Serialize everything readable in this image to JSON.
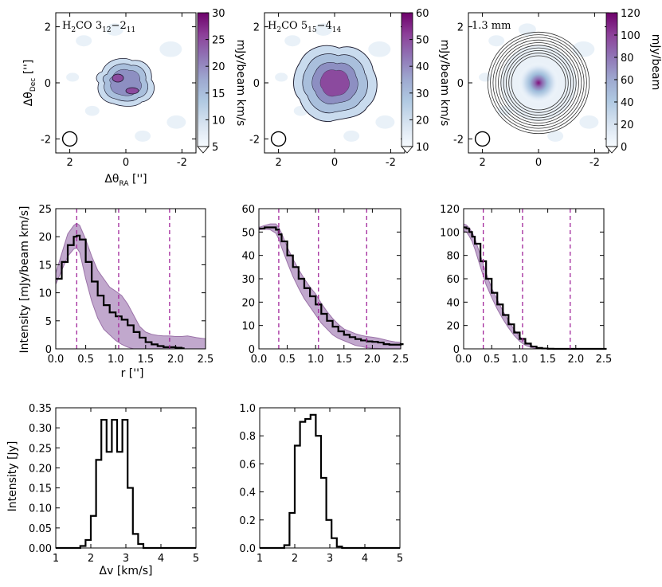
{
  "figure": {
    "background": "#ffffff"
  },
  "colors": {
    "profile_fill": "#b799c5",
    "profile_edge": "#8a5a9a",
    "profile_line": "#000000",
    "guide_line": "#a2279b",
    "contour": "#1a1a2e",
    "cmap": [
      "#f7fbff",
      "#c6dbef",
      "#9ebad8",
      "#8c96c6",
      "#8c6bb1",
      "#88419d",
      "#6e016b"
    ]
  },
  "chart_data": [
    {
      "id": "map1",
      "type": "heatmap",
      "title_main": "H",
      "title_sub1": "2",
      "title_mid": "CO 3",
      "title_sub2": "12",
      "title_dash": "−2",
      "title_sub3": "11",
      "xlabel_main": "Δθ",
      "xlabel_sub": "RA",
      "xlabel_unit": " ['']",
      "ylabel_main": "Δθ",
      "ylabel_sub": "Dec",
      "ylabel_unit": " ['']",
      "xlim": [
        2.5,
        -2.5
      ],
      "ylim": [
        -2.5,
        2.5
      ],
      "xticks": [
        2,
        0,
        -2
      ],
      "xtick_labels": [
        "2",
        "0",
        "-2"
      ],
      "yticks": [
        -2,
        0,
        2
      ],
      "ytick_labels": [
        "-2",
        "0",
        "2"
      ],
      "beam_center": [
        2.0,
        -2.0
      ],
      "colorbar": {
        "label": "mJy/beam km/s",
        "range": [
          5,
          30
        ],
        "ticks": [
          5,
          10,
          15,
          20,
          25,
          30
        ],
        "tick_labels": [
          "5",
          "10",
          "15",
          "20",
          "25",
          "30"
        ]
      },
      "source": {
        "peak": 27,
        "size": 1.0
      }
    },
    {
      "id": "map2",
      "type": "heatmap",
      "title_main": "H",
      "title_sub1": "2",
      "title_mid": "CO 5",
      "title_sub2": "15",
      "title_dash": "−4",
      "title_sub3": "14",
      "xlim": [
        2.5,
        -2.5
      ],
      "ylim": [
        -2.5,
        2.5
      ],
      "xticks": [
        2,
        0,
        -2
      ],
      "xtick_labels": [
        "2",
        "0",
        "-2"
      ],
      "yticks": [
        -2,
        0,
        2
      ],
      "ytick_labels": [
        "-2",
        "0",
        "2"
      ],
      "beam_center": [
        2.0,
        -2.0
      ],
      "colorbar": {
        "label": "mJy/beam km/s",
        "range": [
          10,
          60
        ],
        "ticks": [
          10,
          20,
          30,
          40,
          50,
          60
        ],
        "tick_labels": [
          "10",
          "20",
          "30",
          "40",
          "50",
          "60"
        ]
      },
      "source": {
        "peak": 58,
        "size": 1.2
      }
    },
    {
      "id": "map3",
      "type": "heatmap",
      "title_text": "1.3 mm",
      "xlim": [
        2.5,
        -2.5
      ],
      "ylim": [
        -2.5,
        2.5
      ],
      "xticks": [
        2,
        0,
        -2
      ],
      "xtick_labels": [
        "2",
        "0",
        "-2"
      ],
      "yticks": [
        -2,
        0,
        2
      ],
      "ytick_labels": [
        "-2",
        "0",
        "2"
      ],
      "beam_center": [
        2.0,
        -2.0
      ],
      "colorbar": {
        "label": "mJy/beam",
        "range": [
          0,
          120
        ],
        "ticks": [
          0,
          20,
          40,
          60,
          80,
          100,
          120
        ],
        "tick_labels": [
          "0",
          "20",
          "40",
          "60",
          "80",
          "100",
          "120"
        ]
      },
      "source": {
        "peak": 105,
        "size": 0.45
      }
    },
    {
      "id": "prof1",
      "type": "line",
      "xlabel": "r ['']",
      "ylabel": "Intensity [mJy/beam km/s]",
      "xlim": [
        0,
        2.5
      ],
      "ylim": [
        0,
        25
      ],
      "xticks": [
        0.0,
        0.5,
        1.0,
        1.5,
        2.0,
        2.5
      ],
      "xtick_labels": [
        "0.0",
        "0.5",
        "1.0",
        "1.5",
        "2.0",
        "2.5"
      ],
      "yticks": [
        0,
        5,
        10,
        15,
        20,
        25
      ],
      "ytick_labels": [
        "0",
        "5",
        "10",
        "15",
        "20",
        "25"
      ],
      "vlines": [
        0.35,
        1.05,
        1.9
      ],
      "x": [
        0.0,
        0.1,
        0.2,
        0.3,
        0.35,
        0.4,
        0.5,
        0.6,
        0.7,
        0.8,
        0.9,
        1.0,
        1.1,
        1.2,
        1.3,
        1.4,
        1.5,
        1.6,
        1.7,
        1.8,
        1.9,
        2.0,
        2.1
      ],
      "y": [
        12.5,
        15.5,
        18.5,
        20.0,
        20.2,
        19.5,
        15.5,
        12.0,
        9.5,
        7.8,
        6.5,
        5.8,
        5.2,
        4.2,
        3.0,
        2.0,
        1.2,
        0.8,
        0.5,
        0.3,
        0.3,
        0.2,
        0.1
      ],
      "y_low": [
        11.5,
        14.0,
        16.5,
        17.8,
        18.0,
        17.2,
        12.5,
        8.5,
        5.5,
        3.5,
        2.5,
        1.5,
        0.8,
        0.3,
        0.0,
        0.0,
        0.0,
        0.0,
        0.0,
        0.0,
        0.0,
        0.0,
        0.0
      ],
      "y_high": [
        13.5,
        17.0,
        20.5,
        22.0,
        22.4,
        22.0,
        19.5,
        16.5,
        14.0,
        12.5,
        11.0,
        10.3,
        9.5,
        8.0,
        6.0,
        4.0,
        3.0,
        2.6,
        2.4,
        2.3,
        2.3,
        2.2,
        2.2,
        2.3,
        2.0,
        1.8
      ],
      "x_high": [
        0.0,
        0.1,
        0.2,
        0.3,
        0.35,
        0.4,
        0.5,
        0.6,
        0.7,
        0.8,
        0.9,
        1.0,
        1.1,
        1.2,
        1.3,
        1.4,
        1.5,
        1.6,
        1.7,
        1.8,
        1.9,
        2.0,
        2.1,
        2.2,
        2.35,
        2.5
      ],
      "x_low_tail": [
        2.1,
        2.5
      ]
    },
    {
      "id": "prof2",
      "type": "line",
      "xlim": [
        0,
        2.5
      ],
      "ylim": [
        0,
        60
      ],
      "xticks": [
        0.0,
        0.5,
        1.0,
        1.5,
        2.0,
        2.5
      ],
      "xtick_labels": [
        "0.0",
        "0.5",
        "1.0",
        "1.5",
        "2.0",
        "2.5"
      ],
      "yticks": [
        0,
        10,
        20,
        30,
        40,
        50,
        60
      ],
      "ytick_labels": [
        "0",
        "10",
        "20",
        "30",
        "40",
        "50",
        "60"
      ],
      "vlines": [
        0.35,
        1.05,
        1.9
      ],
      "x": [
        0.0,
        0.1,
        0.2,
        0.3,
        0.35,
        0.4,
        0.5,
        0.6,
        0.7,
        0.8,
        0.9,
        1.0,
        1.1,
        1.2,
        1.3,
        1.4,
        1.5,
        1.6,
        1.7,
        1.8,
        1.9,
        2.0,
        2.1,
        2.2,
        2.3,
        2.4,
        2.5
      ],
      "y": [
        51.5,
        52.0,
        52.0,
        51.0,
        49.0,
        46.0,
        40.0,
        35.0,
        30.0,
        26.0,
        22.5,
        19.0,
        15.0,
        12.0,
        9.5,
        7.5,
        6.0,
        5.0,
        4.2,
        3.6,
        3.2,
        3.0,
        2.7,
        2.0,
        1.8,
        1.8,
        2.0
      ],
      "y_low": [
        51.0,
        51.2,
        51.0,
        49.5,
        47.0,
        43.5,
        37.0,
        31.0,
        26.0,
        21.5,
        18.0,
        14.5,
        11.0,
        8.5,
        6.0,
        4.5,
        3.5,
        2.5,
        1.5,
        1.0,
        0.5,
        0.3,
        0.2,
        0.0,
        0.0,
        0.0,
        0.0
      ],
      "y_high": [
        52.0,
        52.8,
        53.5,
        53.5,
        52.0,
        49.5,
        43.5,
        38.5,
        34.0,
        30.0,
        26.5,
        23.5,
        19.5,
        16.0,
        13.0,
        10.5,
        8.5,
        7.5,
        6.5,
        5.8,
        5.3,
        5.0,
        4.6,
        4.0,
        3.4,
        3.0,
        2.8
      ]
    },
    {
      "id": "prof3",
      "type": "line",
      "xlim": [
        0,
        2.5
      ],
      "ylim": [
        0,
        120
      ],
      "xticks": [
        0.0,
        0.5,
        1.0,
        1.5,
        2.0,
        2.5
      ],
      "xtick_labels": [
        "0.0",
        "0.5",
        "1.0",
        "1.5",
        "2.0",
        "2.5"
      ],
      "yticks": [
        0,
        20,
        40,
        60,
        80,
        100,
        120
      ],
      "ytick_labels": [
        "0",
        "20",
        "40",
        "60",
        "80",
        "100",
        "120"
      ],
      "vlines": [
        0.35,
        1.05,
        1.9
      ],
      "x": [
        0.0,
        0.05,
        0.1,
        0.15,
        0.2,
        0.3,
        0.4,
        0.5,
        0.6,
        0.7,
        0.8,
        0.9,
        1.0,
        1.1,
        1.2,
        1.3,
        1.4,
        1.5,
        1.6,
        1.8,
        2.0,
        2.5
      ],
      "y": [
        104.0,
        103.0,
        100.0,
        96.0,
        90.0,
        75.0,
        60.0,
        48.0,
        38.0,
        29.0,
        21.0,
        14.0,
        8.5,
        4.5,
        2.0,
        0.8,
        0.3,
        0.1,
        0.0,
        0.0,
        0.0,
        0.0
      ],
      "y_low": [
        101.0,
        100.0,
        96.5,
        92.0,
        85.5,
        70.0,
        55.0,
        44.0,
        34.0,
        25.5,
        18.0,
        11.5,
        6.5,
        3.0,
        1.2,
        0.3,
        0.0,
        0.0,
        0.0,
        0.0,
        0.0,
        0.0
      ],
      "y_high": [
        107.0,
        106.0,
        103.5,
        100.0,
        94.5,
        80.0,
        65.0,
        52.0,
        42.0,
        32.5,
        24.0,
        16.5,
        10.5,
        6.0,
        3.0,
        1.3,
        0.5,
        0.2,
        0.1,
        0.0,
        0.0,
        0.0
      ]
    },
    {
      "id": "spec1",
      "type": "line",
      "xlabel": "Δv [km/s]",
      "ylabel": "Intensity [Jy]",
      "xlim": [
        1,
        5
      ],
      "ylim": [
        0,
        0.35
      ],
      "xticks": [
        1,
        2,
        3,
        4,
        5
      ],
      "xtick_labels": [
        "1",
        "2",
        "3",
        "4",
        "5"
      ],
      "yticks": [
        0.0,
        0.05,
        0.1,
        0.15,
        0.2,
        0.25,
        0.3,
        0.35
      ],
      "ytick_labels": [
        "0.00",
        "0.05",
        "0.10",
        "0.15",
        "0.20",
        "0.25",
        "0.30",
        "0.35"
      ],
      "bin_edges": [
        1.0,
        1.7,
        1.85,
        2.0,
        2.15,
        2.3,
        2.45,
        2.6,
        2.75,
        2.9,
        3.05,
        3.2,
        3.35,
        3.5,
        3.65,
        5.0
      ],
      "values": [
        0.0,
        0.005,
        0.02,
        0.08,
        0.22,
        0.32,
        0.24,
        0.32,
        0.24,
        0.32,
        0.15,
        0.035,
        0.01,
        0.0,
        0.0
      ]
    },
    {
      "id": "spec2",
      "type": "line",
      "xlim": [
        1,
        5
      ],
      "ylim": [
        0,
        1.0
      ],
      "xticks": [
        1,
        2,
        3,
        4,
        5
      ],
      "xtick_labels": [
        "1",
        "2",
        "3",
        "4",
        "5"
      ],
      "yticks": [
        0.0,
        0.2,
        0.4,
        0.6,
        0.8,
        1.0
      ],
      "ytick_labels": [
        "0.0",
        "0.2",
        "0.4",
        "0.6",
        "0.8",
        "1.0"
      ],
      "bin_edges": [
        1.0,
        1.7,
        1.85,
        2.0,
        2.15,
        2.3,
        2.45,
        2.6,
        2.75,
        2.9,
        3.05,
        3.2,
        3.35,
        3.5,
        3.65,
        5.0
      ],
      "values": [
        0.0,
        0.02,
        0.25,
        0.73,
        0.9,
        0.92,
        0.95,
        0.8,
        0.5,
        0.2,
        0.07,
        0.01,
        0.0,
        0.0,
        0.0
      ]
    }
  ]
}
